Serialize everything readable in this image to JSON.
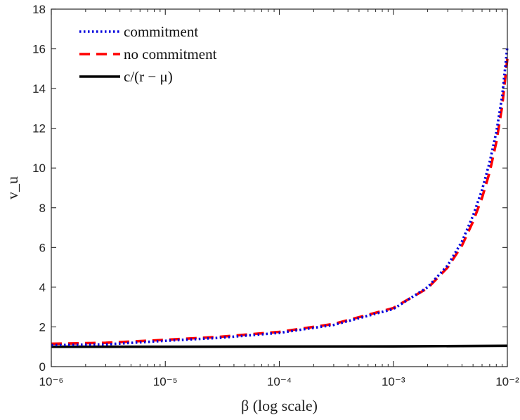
{
  "chart_data": {
    "type": "line",
    "xlabel": "β (log scale)",
    "ylabel": "v_u",
    "xscale": "log",
    "xlim": [
      1e-06,
      0.01
    ],
    "ylim": [
      0,
      18
    ],
    "yticks": [
      0,
      2,
      4,
      6,
      8,
      10,
      12,
      14,
      16,
      18
    ],
    "xticks": [
      {
        "value": 1e-06,
        "label": "10⁻⁶"
      },
      {
        "value": 1e-05,
        "label": "10⁻⁵"
      },
      {
        "value": 0.0001,
        "label": "10⁻⁴"
      },
      {
        "value": 0.001,
        "label": "10⁻³"
      },
      {
        "value": 0.01,
        "label": "10⁻²"
      }
    ],
    "grid": false,
    "legend_position": "top-left",
    "series": [
      {
        "name": "commitment",
        "style": "dotted",
        "color": "#0000dd",
        "x": [
          1e-06,
          3e-06,
          1e-05,
          3e-05,
          0.0001,
          0.0003,
          0.001,
          0.002,
          0.003,
          0.004,
          0.005,
          0.006,
          0.007,
          0.008,
          0.009,
          0.01
        ],
        "y": [
          1.08,
          1.12,
          1.3,
          1.45,
          1.7,
          2.1,
          2.9,
          4.0,
          5.1,
          6.3,
          7.6,
          8.9,
          10.3,
          11.8,
          13.6,
          16.1
        ]
      },
      {
        "name": "no commitment",
        "style": "dashed",
        "color": "#ff0000",
        "x": [
          1e-06,
          3e-06,
          1e-05,
          3e-05,
          0.0001,
          0.0003,
          0.001,
          0.002,
          0.003,
          0.004,
          0.005,
          0.006,
          0.007,
          0.008,
          0.009,
          0.01
        ],
        "y": [
          1.15,
          1.2,
          1.35,
          1.5,
          1.75,
          2.15,
          2.95,
          3.95,
          5.0,
          6.1,
          7.3,
          8.5,
          9.8,
          11.3,
          13.1,
          15.5
        ]
      },
      {
        "name": "c/(r − μ)",
        "style": "solid",
        "color": "#000000",
        "x": [
          1e-06,
          1e-05,
          0.0001,
          0.001,
          0.01
        ],
        "y": [
          1.0,
          1.0,
          1.01,
          1.02,
          1.05
        ]
      }
    ]
  }
}
